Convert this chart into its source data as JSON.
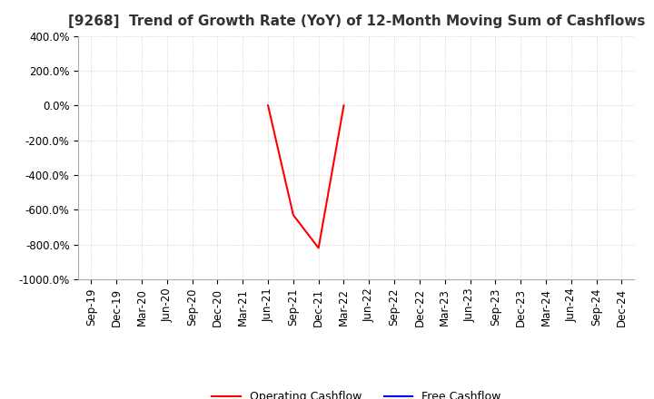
{
  "title": "[9268]  Trend of Growth Rate (YoY) of 12-Month Moving Sum of Cashflows",
  "ylim": [
    -1000,
    400
  ],
  "yticks": [
    400,
    200,
    0,
    -200,
    -400,
    -600,
    -800,
    -1000
  ],
  "ytick_labels": [
    "400.0%",
    "200.0%",
    "0.0%",
    "-200.0%",
    "-400.0%",
    "-600.0%",
    "-800.0%",
    "-1000.0%"
  ],
  "operating_color": "#FF0000",
  "free_color": "#0000FF",
  "background_color": "#FFFFFF",
  "grid_color": "#BBBBBB",
  "dates": [
    "Sep-19",
    "Dec-19",
    "Mar-20",
    "Jun-20",
    "Sep-20",
    "Dec-20",
    "Mar-21",
    "Jun-21",
    "Sep-21",
    "Dec-21",
    "Mar-22",
    "Jun-22",
    "Sep-22",
    "Dec-22",
    "Mar-23",
    "Jun-23",
    "Sep-23",
    "Dec-23",
    "Mar-24",
    "Jun-24",
    "Sep-24",
    "Dec-24"
  ],
  "op_cf": [
    null,
    null,
    null,
    null,
    null,
    null,
    null,
    null,
    -630,
    -820,
    null,
    null,
    null,
    null,
    null,
    null,
    null,
    null,
    null,
    null,
    null,
    null
  ],
  "free_cf": [
    null,
    null,
    null,
    null,
    null,
    null,
    null,
    null,
    null,
    null,
    null,
    null,
    null,
    null,
    null,
    null,
    null,
    null,
    null,
    null,
    null,
    null
  ],
  "legend_labels": [
    "Operating Cashflow",
    "Free Cashflow"
  ],
  "title_fontsize": 11,
  "tick_fontsize": 8.5
}
